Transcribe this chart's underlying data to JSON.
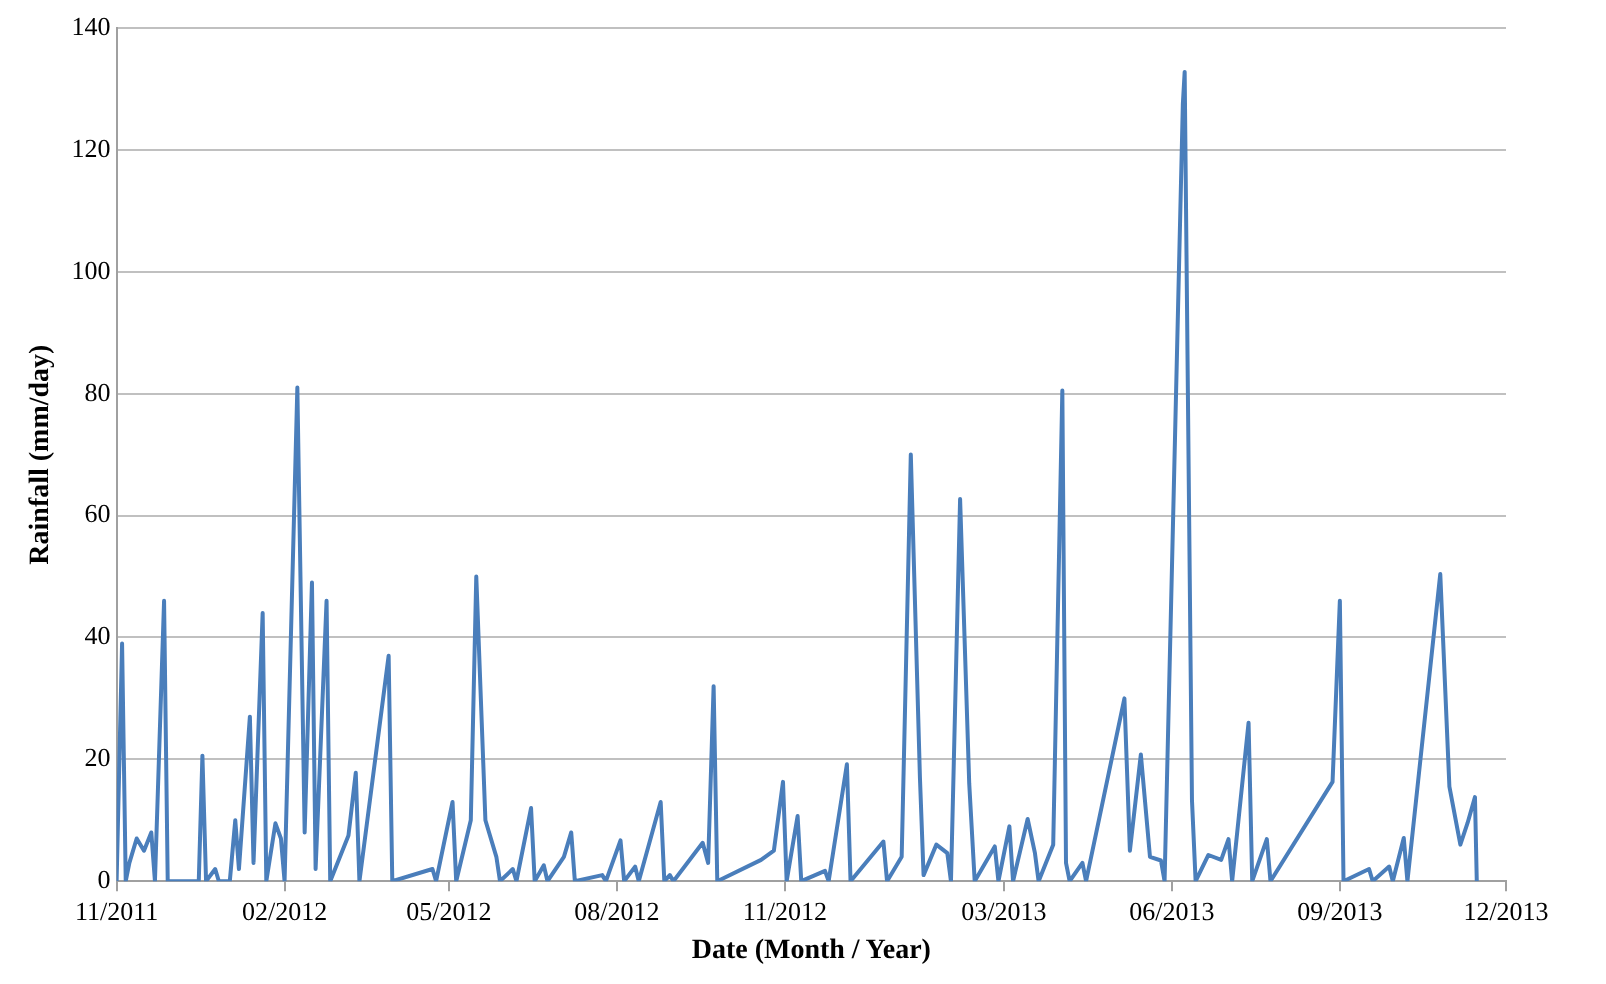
{
  "chart_data": {
    "type": "line",
    "xlabel": "Date (Month / Year)",
    "ylabel": "Rainfall (mm/day)",
    "x": [
      "2011-11-01",
      "2011-11-04",
      "2011-11-06",
      "2011-11-08",
      "2011-11-12",
      "2011-11-16",
      "2011-11-20",
      "2011-11-22",
      "2011-11-27",
      "2011-11-29",
      "2011-12-16",
      "2011-12-18",
      "2011-12-20",
      "2011-12-25",
      "2011-12-27",
      "2012-01-02",
      "2012-01-05",
      "2012-01-07",
      "2012-01-13",
      "2012-01-15",
      "2012-01-20",
      "2012-01-22",
      "2012-01-27",
      "2012-01-30",
      "2012-02-01",
      "2012-02-08",
      "2012-02-12",
      "2012-02-16",
      "2012-02-18",
      "2012-02-24",
      "2012-02-26",
      "2012-03-07",
      "2012-03-11",
      "2012-03-13",
      "2012-03-29",
      "2012-03-31",
      "2012-04-22",
      "2012-04-24",
      "2012-05-03",
      "2012-05-05",
      "2012-05-13",
      "2012-05-16",
      "2012-05-21",
      "2012-05-27",
      "2012-05-29",
      "2012-06-05",
      "2012-06-07",
      "2012-06-15",
      "2012-06-17",
      "2012-06-22",
      "2012-06-24",
      "2012-07-03",
      "2012-07-07",
      "2012-07-09",
      "2012-07-24",
      "2012-07-26",
      "2012-08-03",
      "2012-08-05",
      "2012-08-11",
      "2012-08-13",
      "2012-08-25",
      "2012-08-27",
      "2012-08-30",
      "2012-09-01",
      "2012-09-17",
      "2012-09-20",
      "2012-09-23",
      "2012-09-25",
      "2012-10-19",
      "2012-10-26",
      "2012-10-31",
      "2012-11-02",
      "2012-11-08",
      "2012-11-10",
      "2012-11-23",
      "2012-11-25",
      "2012-12-05",
      "2012-12-07",
      "2012-12-25",
      "2012-12-27",
      "2013-01-04",
      "2013-01-09",
      "2013-01-14",
      "2013-01-16",
      "2013-01-23",
      "2013-01-29",
      "2013-01-31",
      "2013-02-05",
      "2013-02-10",
      "2013-02-13",
      "2013-02-24",
      "2013-02-26",
      "2013-03-04",
      "2013-03-06",
      "2013-03-14",
      "2013-03-18",
      "2013-03-20",
      "2013-03-28",
      "2013-04-02",
      "2013-04-04",
      "2013-04-06",
      "2013-04-13",
      "2013-04-15",
      "2013-05-06",
      "2013-05-09",
      "2013-05-15",
      "2013-05-20",
      "2013-05-26",
      "2013-05-28",
      "2013-06-07",
      "2013-06-08",
      "2013-06-12",
      "2013-06-14",
      "2013-06-21",
      "2013-06-28",
      "2013-07-02",
      "2013-07-04",
      "2013-07-13",
      "2013-07-15",
      "2013-07-23",
      "2013-07-25",
      "2013-08-28",
      "2013-09-01",
      "2013-09-03",
      "2013-09-17",
      "2013-09-19",
      "2013-09-28",
      "2013-09-30",
      "2013-10-06",
      "2013-10-08",
      "2013-10-26",
      "2013-10-31",
      "2013-11-06",
      "2013-11-10",
      "2013-11-14",
      "2013-11-15"
    ],
    "series": [
      {
        "color": "#4a7ebb",
        "values": [
          0,
          39,
          0,
          3,
          7,
          5,
          8,
          0,
          46,
          0,
          0,
          20.6,
          0,
          2,
          0,
          0,
          10,
          2,
          27,
          3,
          44,
          0,
          9.5,
          7,
          0,
          81,
          8,
          49,
          2,
          46,
          0,
          7.5,
          17.8,
          0,
          37,
          0,
          2,
          0,
          13,
          0,
          10,
          50,
          10,
          4,
          0,
          2,
          0,
          12,
          0,
          2.6,
          0,
          4,
          8,
          0,
          1,
          0,
          6.7,
          0,
          2.4,
          0,
          13,
          0,
          1,
          0,
          6.3,
          3,
          32,
          0,
          3.5,
          5,
          16.3,
          0,
          10.7,
          0,
          1.7,
          0,
          19.2,
          0,
          6.5,
          0,
          4,
          70,
          17,
          1,
          6,
          4.6,
          0,
          62.7,
          16,
          0,
          5.7,
          0,
          9,
          0,
          10.2,
          4.6,
          0,
          6,
          80.5,
          3,
          0,
          3,
          0,
          30,
          5,
          20.8,
          4,
          3.4,
          0,
          127.5,
          132.8,
          13.3,
          0,
          4.3,
          3.5,
          6.9,
          0,
          26,
          0,
          6.9,
          0,
          16.3,
          46,
          0,
          2,
          0,
          2.4,
          0,
          7.1,
          0,
          50.4,
          15.5,
          6,
          9.6,
          13.8,
          0
        ]
      }
    ],
    "xlim": [
      "2011-11-01",
      "2013-12-01"
    ],
    "xticks": [
      {
        "value": "2011-11-01",
        "label": "11/2011"
      },
      {
        "value": "2012-02-01",
        "label": "02/2012"
      },
      {
        "value": "2012-05-01",
        "label": "05/2012"
      },
      {
        "value": "2012-08-01",
        "label": "08/2012"
      },
      {
        "value": "2012-11-01",
        "label": "11/2012"
      },
      {
        "value": "2013-03-01",
        "label": "03/2013"
      },
      {
        "value": "2013-06-01",
        "label": "06/2013"
      },
      {
        "value": "2013-09-01",
        "label": "09/2013"
      },
      {
        "value": "2013-12-01",
        "label": "12/2013"
      }
    ],
    "ylim": [
      0,
      140
    ],
    "yticks": [
      0,
      20,
      40,
      60,
      80,
      100,
      120,
      140
    ],
    "grid": "y",
    "legend": false,
    "marker": "none",
    "line_style": "solid"
  }
}
